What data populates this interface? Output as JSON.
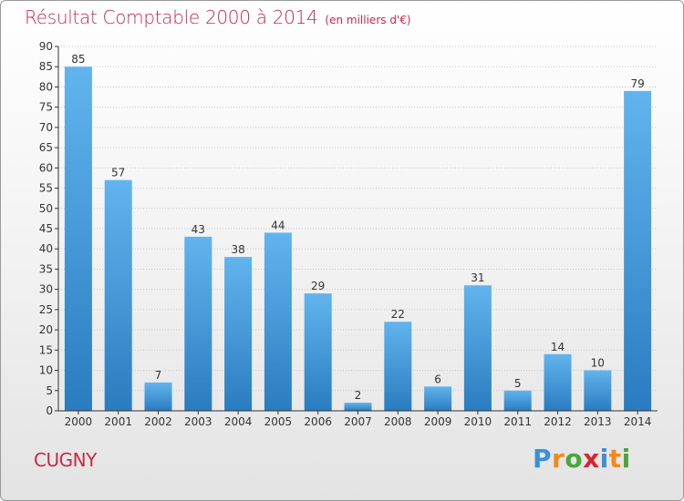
{
  "title": "Résultat Comptable 2000 à 2014",
  "unit": "(en milliers d'€)",
  "commune": "CUGNY",
  "logo": {
    "text": "Proxiti",
    "letters": [
      {
        "ch": "P",
        "color": "#3d8fd6"
      },
      {
        "ch": "r",
        "color": "#f08a1c"
      },
      {
        "ch": "o",
        "color": "#4aa63a"
      },
      {
        "ch": "x",
        "color": "#d8262e"
      },
      {
        "ch": "i",
        "color": "#3d8fd6"
      },
      {
        "ch": "t",
        "color": "#f08a1c"
      },
      {
        "ch": "i",
        "color": "#4aa63a"
      }
    ]
  },
  "colors": {
    "title": "#c42a4c",
    "bar_light": "#62b4ee",
    "bar_dark": "#2a7cc0",
    "axis": "#333333",
    "grid": "#c8c8c8"
  },
  "chart_data": {
    "type": "bar",
    "title": "Résultat Comptable 2000 à 2014",
    "xlabel": "",
    "ylabel": "",
    "categories": [
      "2000",
      "2001",
      "2002",
      "2003",
      "2004",
      "2005",
      "2006",
      "2007",
      "2008",
      "2009",
      "2010",
      "2011",
      "2012",
      "2013",
      "2014"
    ],
    "values": [
      85,
      57,
      7,
      43,
      38,
      44,
      29,
      2,
      22,
      6,
      31,
      5,
      14,
      10,
      79
    ],
    "ylim": [
      0,
      90
    ],
    "ytick_step": 5,
    "grid": true
  }
}
